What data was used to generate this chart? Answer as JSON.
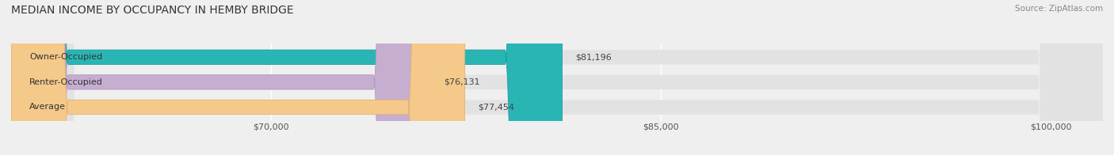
{
  "title": "MEDIAN INCOME BY OCCUPANCY IN HEMBY BRIDGE",
  "source": "Source: ZipAtlas.com",
  "categories": [
    "Owner-Occupied",
    "Renter-Occupied",
    "Average"
  ],
  "values": [
    81196,
    76131,
    77454
  ],
  "bar_colors": [
    "#2ab5b5",
    "#c5aed0",
    "#f5c98a"
  ],
  "bar_edge_colors": [
    "#1a9a9a",
    "#b09ac0",
    "#e5b070"
  ],
  "value_labels": [
    "$81,196",
    "$76,131",
    "$77,454"
  ],
  "xlim": [
    60000,
    102000
  ],
  "xticks": [
    70000,
    85000,
    100000
  ],
  "xticklabels": [
    "$70,000",
    "$85,000",
    "$100,000"
  ],
  "title_fontsize": 10,
  "source_fontsize": 7.5,
  "label_fontsize": 8,
  "tick_fontsize": 8,
  "background_color": "#efefef",
  "bar_bg_color": "#e2e2e2",
  "bar_height": 0.58
}
